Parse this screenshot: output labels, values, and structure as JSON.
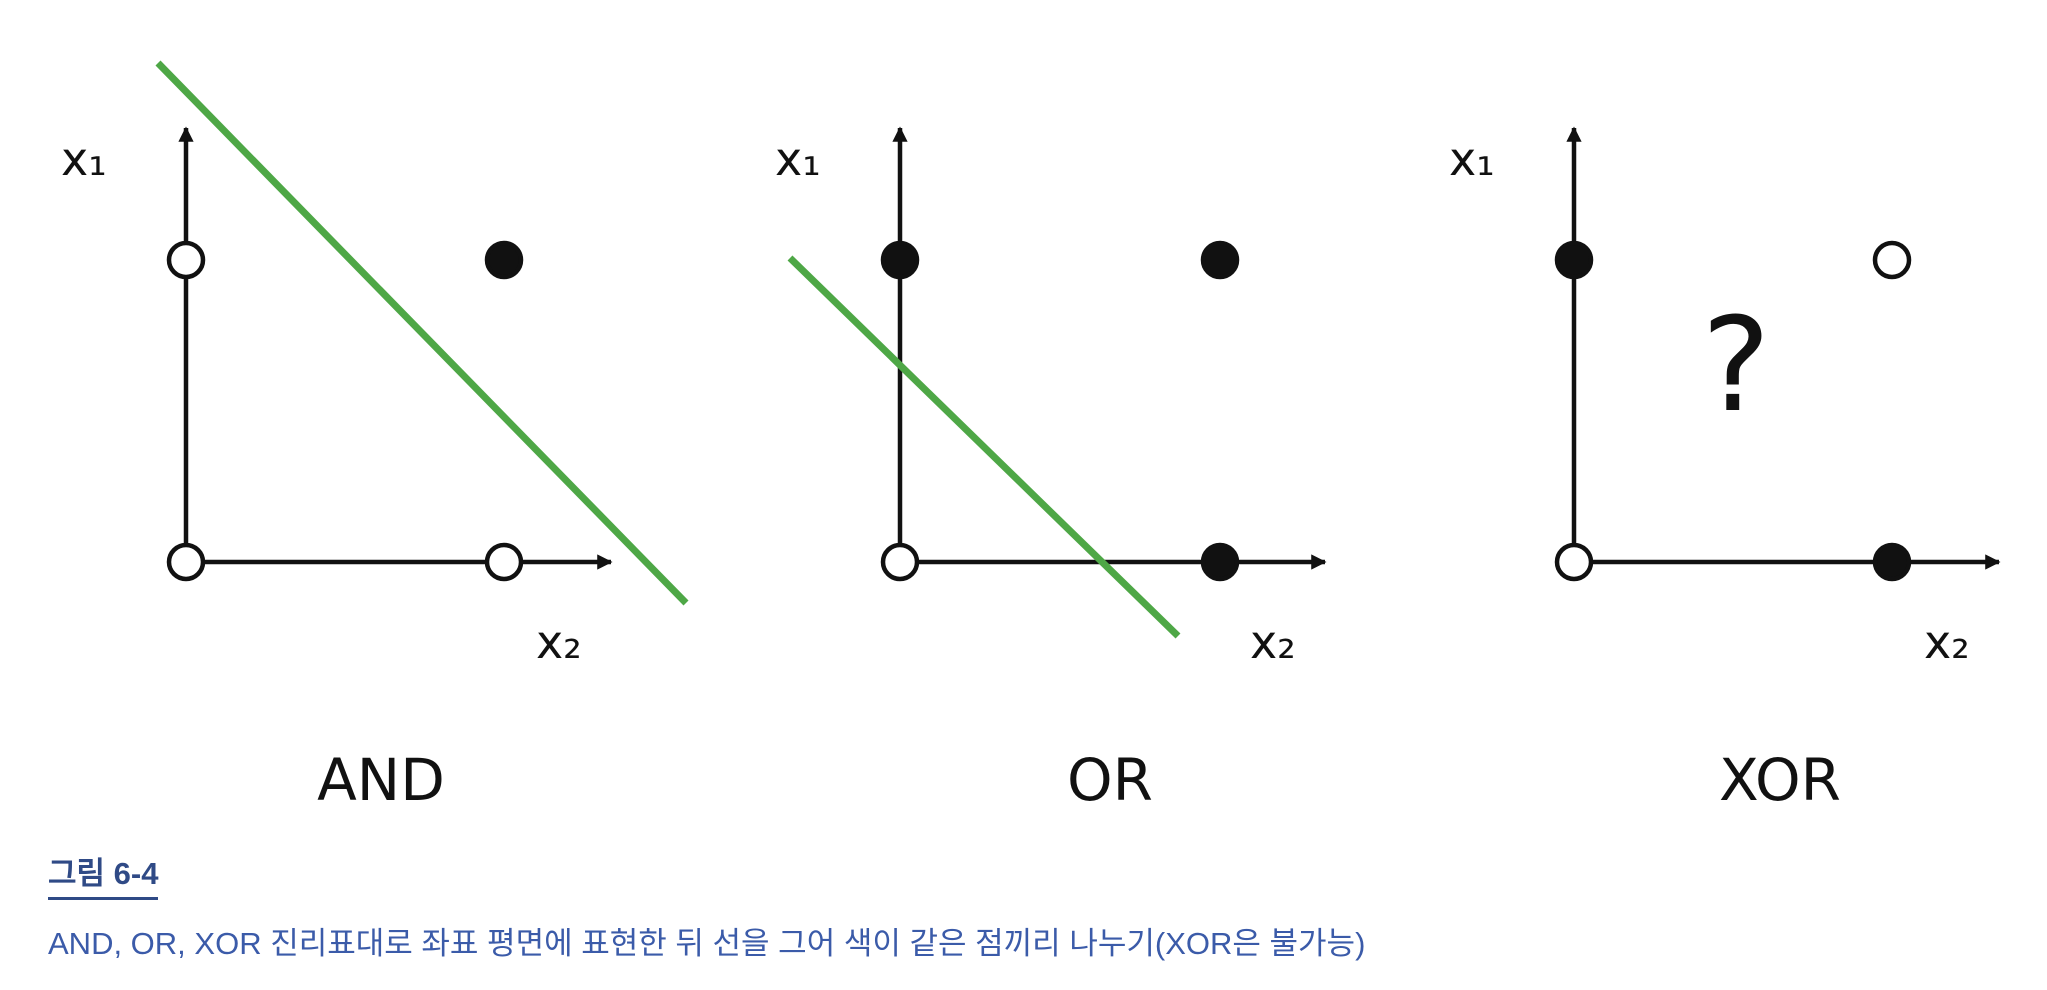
{
  "diagram": {
    "panels": [
      {
        "title": "AND",
        "x_axis_label": "x₂",
        "y_axis_label": "x₁",
        "points": [
          {
            "x1": 0,
            "x2": 0,
            "filled": false
          },
          {
            "x1": 1,
            "x2": 0,
            "filled": false
          },
          {
            "x1": 0,
            "x2": 1,
            "filled": false
          },
          {
            "x1": 1,
            "x2": 1,
            "filled": true
          }
        ],
        "has_separator": true,
        "unknown_mark": ""
      },
      {
        "title": "OR",
        "x_axis_label": "x₂",
        "y_axis_label": "x₁",
        "points": [
          {
            "x1": 0,
            "x2": 0,
            "filled": false
          },
          {
            "x1": 1,
            "x2": 0,
            "filled": true
          },
          {
            "x1": 0,
            "x2": 1,
            "filled": true
          },
          {
            "x1": 1,
            "x2": 1,
            "filled": true
          }
        ],
        "has_separator": true,
        "unknown_mark": ""
      },
      {
        "title": "XOR",
        "x_axis_label": "x₂",
        "y_axis_label": "x₁",
        "points": [
          {
            "x1": 0,
            "x2": 0,
            "filled": false
          },
          {
            "x1": 1,
            "x2": 0,
            "filled": true
          },
          {
            "x1": 0,
            "x2": 1,
            "filled": true
          },
          {
            "x1": 1,
            "x2": 1,
            "filled": false
          }
        ],
        "has_separator": false,
        "unknown_mark": "?"
      }
    ],
    "colors": {
      "separator_line": "#4ea746",
      "ink": "#111111"
    }
  },
  "caption": {
    "title": "그림 6-4",
    "text": "AND, OR, XOR 진리표대로 좌표 평면에 표현한 뒤 선을 그어 색이 같은 점끼리 나누기(XOR은 불가능)",
    "title_color": "#2f4a86",
    "text_color": "#3b5ba9"
  }
}
